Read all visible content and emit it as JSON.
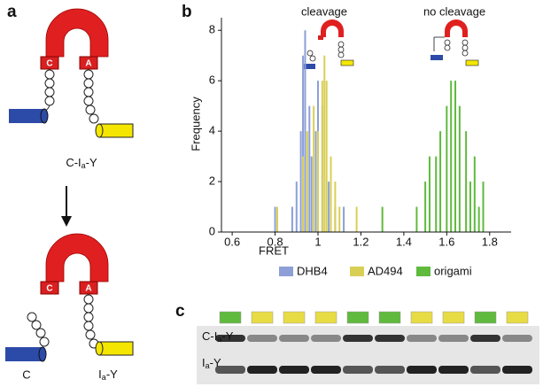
{
  "panel_labels": [
    "a",
    "b",
    "c"
  ],
  "diagram": {
    "box_c": "C",
    "box_a": "A",
    "top_label": {
      "pre": "C-I",
      "sub": "a",
      "post": "-Y"
    },
    "bottom_left": "C",
    "bottom_right": {
      "pre": "I",
      "sub": "a",
      "post": "-Y"
    }
  },
  "chart_data": {
    "type": "bar",
    "xlabel": "FRET",
    "ylabel": "Frequency",
    "annotations": [
      "cleavage",
      "no cleavage"
    ],
    "xlim": [
      0.55,
      1.9
    ],
    "xticks": [
      0.6,
      0.8,
      1,
      1.2,
      1.4,
      1.6,
      1.8
    ],
    "ylim": [
      0,
      8.5
    ],
    "yticks": [
      0,
      2,
      4,
      6,
      8
    ],
    "series": [
      {
        "name": "DHB4",
        "color": "#8d9fd6",
        "x": [
          0.8,
          0.88,
          0.9,
          0.92,
          0.93,
          0.94,
          0.96,
          0.97,
          0.99,
          1.0,
          1.02,
          1.05,
          1.08,
          1.12
        ],
        "values": [
          1,
          1,
          2,
          4,
          7,
          8,
          5,
          3,
          4,
          6,
          5,
          2,
          1,
          1
        ]
      },
      {
        "name": "AD494",
        "color": "#d9cf55",
        "x": [
          0.81,
          0.93,
          0.95,
          0.98,
          1.0,
          1.02,
          1.03,
          1.04,
          1.06,
          1.08,
          1.1,
          1.18
        ],
        "values": [
          1,
          3,
          4,
          5,
          4,
          6,
          7,
          6,
          3,
          2,
          1,
          1
        ]
      },
      {
        "name": "origami",
        "color": "#5fba3e",
        "x": [
          1.3,
          1.46,
          1.5,
          1.52,
          1.55,
          1.57,
          1.6,
          1.62,
          1.64,
          1.66,
          1.69,
          1.71,
          1.73,
          1.75,
          1.77
        ],
        "values": [
          1,
          1,
          2,
          3,
          3,
          4,
          5,
          6,
          6,
          5,
          4,
          2,
          3,
          1,
          2
        ]
      }
    ]
  },
  "gel": {
    "lanes": [
      "#5fba3e",
      "#e8dc45",
      "#e8dc45",
      "#e8dc45",
      "#5fba3e",
      "#5fba3e",
      "#e8dc45",
      "#e8dc45",
      "#5fba3e",
      "#e8dc45"
    ],
    "upper_label": {
      "pre": "C-I",
      "sub": "a",
      "post": "-Y"
    },
    "lower_label": {
      "pre": "I",
      "sub": "a",
      "post": "-Y"
    }
  }
}
